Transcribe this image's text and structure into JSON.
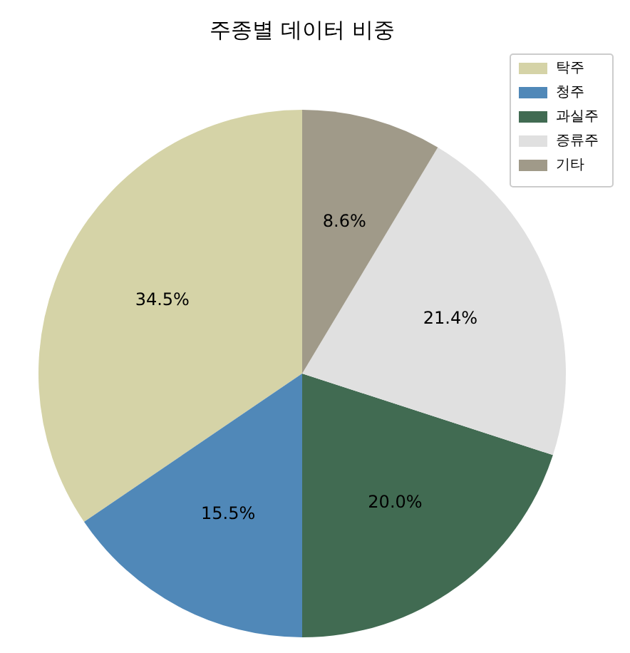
{
  "chart_data": {
    "type": "pie",
    "title": "주종별 데이터 비중",
    "categories": [
      "탁주",
      "청주",
      "과실주",
      "증류주",
      "기타"
    ],
    "values": [
      34.5,
      15.5,
      20.0,
      21.4,
      8.6
    ],
    "value_labels": [
      "34.5%",
      "15.5%",
      "20.0%",
      "21.4%",
      "8.6%"
    ],
    "colors": [
      "#d5d3a7",
      "#5088b8",
      "#416b52",
      "#e0e0e0",
      "#a09a89"
    ],
    "legend": "top right"
  }
}
